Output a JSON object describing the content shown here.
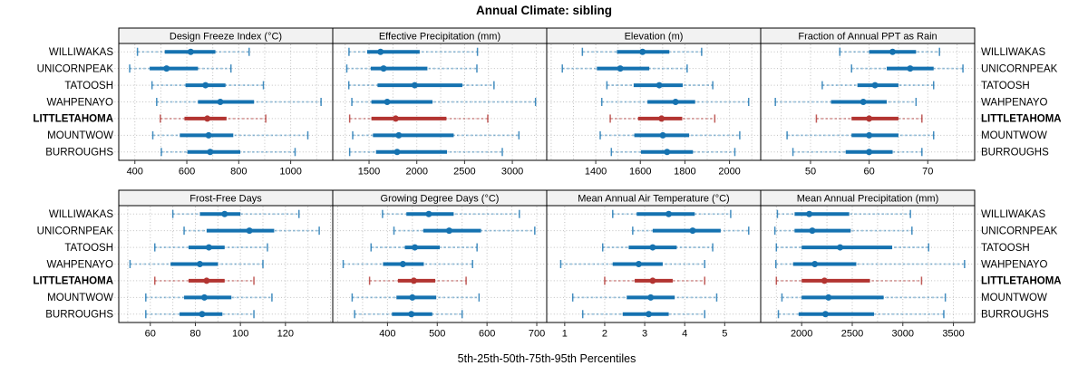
{
  "title": "Annual Climate: sibling",
  "caption": "5th-25th-50th-75th-95th Percentiles",
  "sites": [
    "WILLIWAKAS",
    "UNICORNPEAK",
    "TATOOSH",
    "WAHPENAYO",
    "LITTLETAHOMA",
    "MOUNTWOW",
    "BURROUGHS"
  ],
  "highlight_site": "LITTLETAHOMA",
  "colors": {
    "site_normal": "#1572b0",
    "site_highlight": "#b23431",
    "gridline": "#c0c0c0",
    "strip_bg": "#f2f2f2",
    "panel_border": "#000000",
    "tick": "#333333",
    "text": "#000000"
  },
  "chart_data": {
    "type": "dotplot-percentiles",
    "percentiles": [
      5,
      25,
      50,
      75,
      95
    ],
    "layout": "2 rows x 4 columns of panels, shared site rows",
    "panels": [
      {
        "strip_title": "Design Freeze Index (°C)",
        "domain": [
          338,
          1162
        ],
        "ticks": [
          400,
          600,
          800,
          1000
        ],
        "grid_step": 100,
        "values": [
          [
            410,
            515,
            615,
            710,
            840
          ],
          [
            380,
            457,
            522,
            643,
            770
          ],
          [
            466,
            595,
            672,
            749,
            895
          ],
          [
            484,
            643,
            729,
            859,
            1117
          ],
          [
            498,
            591,
            679,
            753,
            904
          ],
          [
            469,
            573,
            684,
            779,
            1066
          ],
          [
            502,
            602,
            690,
            806,
            1017
          ]
        ]
      },
      {
        "strip_title": "Effective Precipitation (mm)",
        "domain": [
          1120,
          3360
        ],
        "ticks": [
          1500,
          2000,
          2500,
          3000
        ],
        "grid_step": 250,
        "values": [
          [
            1290,
            1480,
            1620,
            2030,
            2635
          ],
          [
            1267,
            1518,
            1652,
            2111,
            2629
          ],
          [
            1288,
            1589,
            1978,
            2477,
            2808
          ],
          [
            1320,
            1525,
            1690,
            2164,
            3243
          ],
          [
            1297,
            1525,
            1779,
            2310,
            2743
          ],
          [
            1329,
            1541,
            1811,
            2386,
            3069
          ],
          [
            1297,
            1573,
            1794,
            2316,
            2895
          ]
        ]
      },
      {
        "strip_title": "Elevation (m)",
        "domain": [
          1180,
          2140
        ],
        "ticks": [
          1400,
          1600,
          1800,
          2000
        ],
        "grid_step": 100,
        "values": [
          [
            1340,
            1495,
            1610,
            1730,
            1875
          ],
          [
            1250,
            1405,
            1510,
            1640,
            1810
          ],
          [
            1450,
            1570,
            1685,
            1790,
            1925
          ],
          [
            1427,
            1632,
            1758,
            1846,
            2086
          ],
          [
            1465,
            1590,
            1695,
            1788,
            1934
          ],
          [
            1420,
            1573,
            1701,
            1819,
            2046
          ],
          [
            1470,
            1603,
            1720,
            1836,
            2024
          ]
        ]
      },
      {
        "strip_title": "Fraction of Annual PPT as Rain",
        "domain": [
          41.5,
          78
        ],
        "ticks": [
          50,
          60,
          70
        ],
        "grid_step": 5,
        "values": [
          [
            55,
            60,
            64,
            68,
            72
          ],
          [
            57,
            63,
            67,
            71,
            76
          ],
          [
            52,
            58,
            61,
            65,
            71
          ],
          [
            44,
            53.5,
            59,
            63,
            68
          ],
          [
            51,
            57,
            60,
            65,
            69
          ],
          [
            46,
            57,
            60,
            65,
            71
          ],
          [
            47,
            56,
            60,
            64,
            69
          ]
        ]
      },
      {
        "strip_title": "Frost-Free Days",
        "domain": [
          46,
          141
        ],
        "ticks": [
          60,
          80,
          100,
          120
        ],
        "grid_step": 10,
        "values": [
          [
            70,
            82,
            93,
            100,
            126
          ],
          [
            75,
            85,
            104,
            115,
            135
          ],
          [
            62,
            77,
            86,
            93,
            112
          ],
          [
            51,
            69,
            82,
            90,
            110
          ],
          [
            62,
            77,
            85,
            93,
            106
          ],
          [
            58,
            75,
            84,
            96,
            114
          ],
          [
            58,
            73,
            83,
            92,
            106
          ]
        ]
      },
      {
        "strip_title": "Growing Degree Days (°C)",
        "domain": [
          290,
          720
        ],
        "ticks": [
          400,
          500,
          600,
          700
        ],
        "grid_step": 50,
        "values": [
          [
            390,
            438,
            483,
            533,
            665
          ],
          [
            413,
            472,
            524,
            588,
            696
          ],
          [
            367,
            435,
            455,
            505,
            580
          ],
          [
            311,
            391,
            431,
            473,
            571
          ],
          [
            364,
            421,
            453,
            496,
            558
          ],
          [
            329,
            418,
            450,
            498,
            584
          ],
          [
            334,
            409,
            448,
            490,
            550
          ]
        ]
      },
      {
        "strip_title": "Mean Annual Air Temperature (°C)",
        "domain": [
          0.55,
          5.9
        ],
        "ticks": [
          1,
          2,
          3,
          4,
          5
        ],
        "grid_step": 1,
        "values": [
          [
            2.2,
            2.8,
            3.6,
            4.25,
            5.15
          ],
          [
            2.7,
            3.2,
            4.2,
            4.9,
            5.6
          ],
          [
            1.95,
            2.6,
            3.2,
            3.8,
            4.7
          ],
          [
            0.9,
            2.2,
            2.85,
            3.45,
            4.5
          ],
          [
            2.0,
            2.75,
            3.2,
            3.7,
            4.5
          ],
          [
            1.2,
            2.55,
            3.15,
            3.75,
            4.8
          ],
          [
            1.45,
            2.45,
            3.1,
            3.6,
            4.5
          ]
        ]
      },
      {
        "strip_title": "Mean Annual Precipitation (mm)",
        "domain": [
          1595,
          3710
        ],
        "ticks": [
          2000,
          2500,
          3000,
          3500
        ],
        "grid_step": 250,
        "values": [
          [
            1760,
            1930,
            2075,
            2470,
            3075
          ],
          [
            1735,
            1930,
            2105,
            2485,
            3090
          ],
          [
            1750,
            2000,
            2380,
            2895,
            3255
          ],
          [
            1745,
            1915,
            2130,
            2540,
            3610
          ],
          [
            1750,
            2000,
            2225,
            2675,
            3185
          ],
          [
            1805,
            2000,
            2265,
            2810,
            3420
          ],
          [
            1770,
            1970,
            2235,
            2715,
            3405
          ]
        ]
      }
    ]
  }
}
